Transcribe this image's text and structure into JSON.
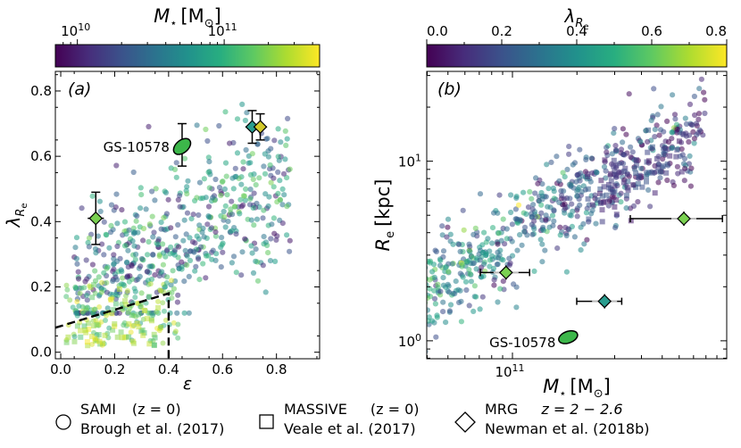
{
  "chart_data": [
    {
      "id": "panel-a",
      "type": "scatter",
      "panel_label": "(a)",
      "xlabel": "ε",
      "ylabel_main": "λ",
      "ylabel_sub": "R",
      "ylabel_subsub": "e",
      "xlim": [
        -0.02,
        0.96
      ],
      "ylim": [
        -0.02,
        0.86
      ],
      "xticks": [
        0.0,
        0.2,
        0.4,
        0.6,
        0.8
      ],
      "xtick_labels": [
        "0.0",
        "0.2",
        "0.4",
        "0.6",
        "0.8"
      ],
      "yticks": [
        0.0,
        0.2,
        0.4,
        0.6,
        0.8
      ],
      "ytick_labels": [
        "0.0",
        "0.2",
        "0.4",
        "0.6",
        "0.8"
      ],
      "colorbar": {
        "label_main": "M",
        "label_sub": "⋆",
        "label_unit": "[M",
        "label_unit_sub": "⊙",
        "label_close": "]",
        "log_range": [
          9.85,
          11.65
        ],
        "tick_base": "10",
        "ticks": [
          {
            "value": 10,
            "exp": "10"
          },
          {
            "value": 11,
            "exp": "11"
          }
        ]
      },
      "highlight": {
        "name": "GS-10578",
        "x": 0.45,
        "y": 0.63,
        "yerr_low": 0.06,
        "yerr_high": 0.07
      },
      "mrg_points": [
        {
          "x": 0.13,
          "y": 0.41,
          "yerr": 0.08,
          "xerr": 0.03,
          "color": "#7ad151"
        },
        {
          "x": 0.71,
          "y": 0.69,
          "yerr": 0.05,
          "xerr": 0.025,
          "color": "#2a9d8f"
        },
        {
          "x": 0.74,
          "y": 0.69,
          "yerr": 0.04,
          "xerr": 0.025,
          "color": "#d2c92a"
        }
      ],
      "slow_rotator_boundary": {
        "x": [
          -0.02,
          0.4,
          0.4,
          0.4
        ],
        "y": [
          0.075,
          0.18,
          0.18,
          -0.02
        ]
      }
    },
    {
      "id": "panel-b",
      "type": "scatter",
      "panel_label": "(b)",
      "xlabel_main": "M",
      "xlabel_sub": "⋆",
      "xlabel_unit": "[M",
      "xlabel_unit_sub": "⊙",
      "xlabel_close": "]",
      "ylabel_main": "R",
      "ylabel_sub": "e",
      "ylabel_unit": "[kpc]",
      "xlim_log": [
        10.6,
        12.0
      ],
      "ylim_log": [
        -0.1,
        1.5
      ],
      "xtick_base": "10",
      "xticks": [
        {
          "value": 11,
          "exp": "11"
        }
      ],
      "ytick_base": "10",
      "yticks": [
        {
          "value": 0,
          "exp": "0"
        },
        {
          "value": 1,
          "exp": "1"
        }
      ],
      "colorbar": {
        "label_main": "λ",
        "label_sub": "R",
        "label_subsub": "e",
        "range": [
          0.0,
          0.8
        ],
        "ticks": [
          0.0,
          0.2,
          0.4,
          0.6,
          0.8
        ],
        "tick_labels": [
          "0.0",
          "0.2",
          "0.4",
          "0.6",
          "0.8"
        ]
      },
      "highlight": {
        "name": "GS-10578",
        "logM": 11.26,
        "logR": 0.02
      },
      "mrg_points": [
        {
          "logM": 10.97,
          "logR": 0.38,
          "xerr_low": 0.12,
          "xerr_high": 0.11,
          "color": "#7ad151"
        },
        {
          "logM": 11.43,
          "logR": 0.22,
          "xerr_low": 0.13,
          "xerr_high": 0.08,
          "color": "#2a9d8f"
        },
        {
          "logM": 11.8,
          "logR": 0.68,
          "xerr_low": 0.25,
          "xerr_high": 0.18,
          "color": "#7ad151"
        }
      ]
    }
  ],
  "legend": [
    {
      "symbol": "circle",
      "line1_name": "SAMI",
      "line1_z": "(z = 0)",
      "line2": "Brough et al. (2017)"
    },
    {
      "symbol": "square",
      "line1_name": "MASSIVE",
      "line1_z": "(z = 0)",
      "line2": "Veale et al. (2017)"
    },
    {
      "symbol": "diamond",
      "line1_name": "MRG",
      "line1_z": "z = 2 − 2.6",
      "line2": "Newman et al. (2018b)"
    }
  ]
}
